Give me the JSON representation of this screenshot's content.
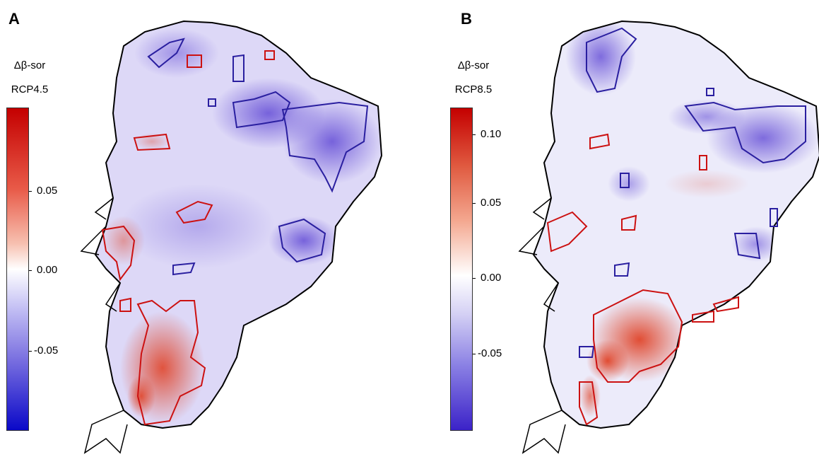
{
  "panels": [
    {
      "label": "A",
      "legend_title": "Δβ-sor",
      "scenario": "RCP4.5",
      "ticks": [
        "0.05",
        "0.00",
        "-0.05"
      ],
      "colorscale": {
        "high": "#cc0000",
        "mid": "#ffffff",
        "low": "#0000cc"
      }
    },
    {
      "label": "B",
      "legend_title": "Δβ-sor",
      "scenario": "RCP8.5",
      "ticks": [
        "0.10",
        "0.05",
        "0.00",
        "-0.05"
      ],
      "colorscale": {
        "high": "#cc0000",
        "mid": "#ffffff",
        "low": "#3322cc"
      }
    }
  ]
}
